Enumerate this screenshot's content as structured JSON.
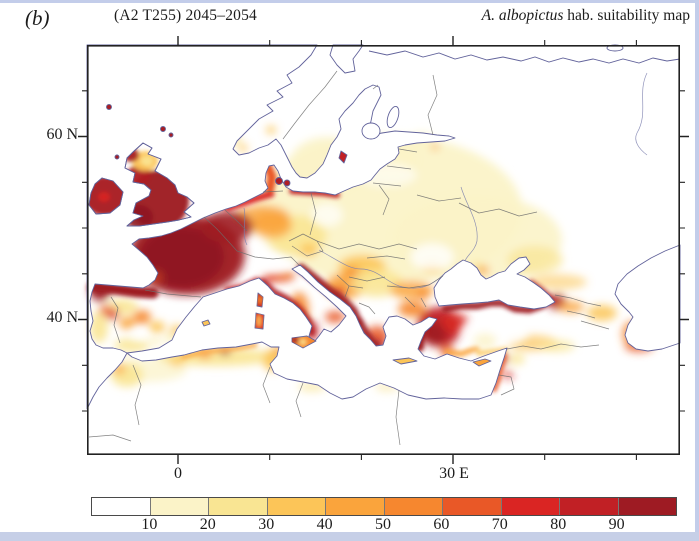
{
  "panel_label": "(b)",
  "header": {
    "left": "(A2 T255) 2045–2054",
    "title_italic": "A. albopictus",
    "title_rest": " hab. suitability map"
  },
  "map": {
    "kind": "geographic habitat-suitability raster map of Europe / North Africa / Middle East",
    "projection_extent": {
      "lon": [
        "10 W",
        "55 E"
      ],
      "lat": [
        "25 N",
        "70 N"
      ]
    },
    "y_ticks": [
      {
        "label": "60 N"
      },
      {
        "label": "40 N"
      }
    ],
    "x_ticks": [
      {
        "label": "0"
      },
      {
        "label": "30 E"
      }
    ],
    "regions": [
      {
        "region": "France",
        "suitability": "90–100"
      },
      {
        "region": "British Isles",
        "suitability": "80–100 (yellow patch in E Scotland)"
      },
      {
        "region": "Northern Spain",
        "suitability": "90–100"
      },
      {
        "region": "Central / southern Iberia",
        "suitability": "10–50 mixed"
      },
      {
        "region": "Benelux and NW Germany coast",
        "suitability": "60–90"
      },
      {
        "region": "Central Europe (Germany, Czechia)",
        "suitability": "20–50"
      },
      {
        "region": "Poland, Baltics, Ukraine",
        "suitability": "10–20"
      },
      {
        "region": "Scandinavia",
        "suitability": "0–20 (pale south Sweden)"
      },
      {
        "region": "Denmark",
        "suitability": "60–90"
      },
      {
        "region": "Po valley and Italian coasts",
        "suitability": "60–90"
      },
      {
        "region": "East Adriatic coast",
        "suitability": "80–100"
      },
      {
        "region": "Inner Balkans",
        "suitability": "30–60"
      },
      {
        "region": "Western Greece, Peloponnese",
        "suitability": "70–100"
      },
      {
        "region": "Western Turkey",
        "suitability": "80–100"
      },
      {
        "region": "Southern Black Sea coast",
        "suitability": "80–100"
      },
      {
        "region": "Central Anatolia",
        "suitability": "0–10"
      },
      {
        "region": "Caucasus / SW Caspian coast",
        "suitability": "30–70"
      },
      {
        "region": "Levant coast",
        "suitability": "50–80"
      },
      {
        "region": "NW Africa coast",
        "suitability": "10–60 spots"
      },
      {
        "region": "Alps",
        "suitability": "0–10"
      }
    ]
  },
  "colorbar": {
    "labels": [
      "10",
      "20",
      "30",
      "40",
      "50",
      "60",
      "70",
      "80",
      "90"
    ],
    "colors": [
      "#ffffff",
      "#FBF3C8",
      "#F9E593",
      "#FCC558",
      "#FAA43C",
      "#F6872F",
      "#E95827",
      "#DA2523",
      "#C12025",
      "#9E1B23"
    ]
  },
  "style_colors": {
    "coastline": "#62639B",
    "country_border": "#6D6D6D",
    "frame": "#222222",
    "page_edge": "#C3CDEA"
  }
}
